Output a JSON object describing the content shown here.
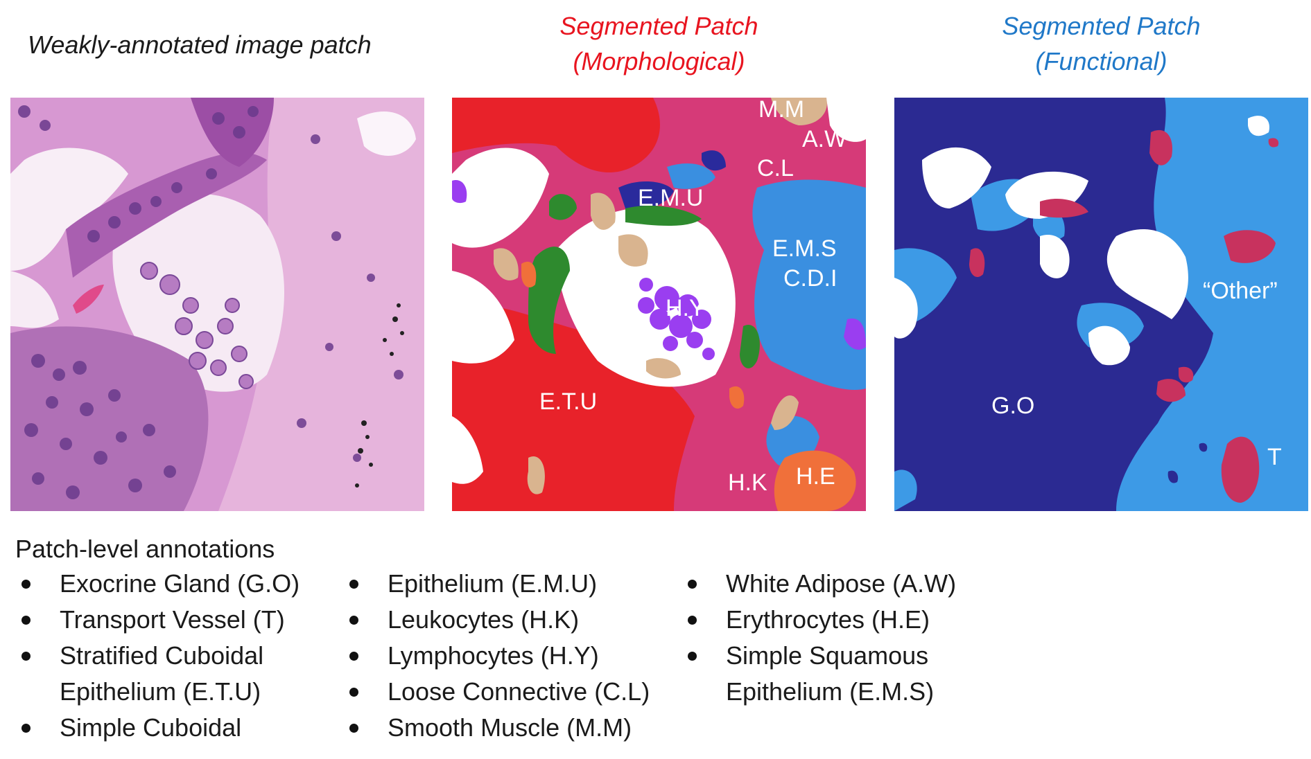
{
  "titles": {
    "original": "Weakly-annotated image patch",
    "morphological_line1": "Segmented Patch",
    "morphological_line2": "(Morphological)",
    "functional_line1": "Segmented Patch",
    "functional_line2": "(Functional)"
  },
  "colors": {
    "morphological_title": "#e8141f",
    "functional_title": "#1f78c8",
    "etu_red": "#e8222a",
    "loose_connective_pink": "#d63a78",
    "simple_squamous_blue": "#3a8fe0",
    "epithelium_navy": "#2a2a9c",
    "lymphocytes_purple": "#9a3ef0",
    "smooth_muscle_tan": "#d9b48f",
    "leukocytes_green": "#2e8a2e",
    "erythrocytes_orange": "#f0703a",
    "exocrine_navy": "#2b2a92",
    "other_lightblue": "#3d9ae6",
    "transport_crimson": "#c8325e"
  },
  "morphological_labels": {
    "mm": "M.M",
    "aw": "A.W",
    "cl": "C.L",
    "emu": "E.M.U",
    "ems": "E.M.S",
    "cdi": "C.D.I",
    "hy": "H.Y",
    "etu": "E.T.U",
    "hk": "H.K",
    "he": "H.E"
  },
  "functional_labels": {
    "go": "G.O",
    "other": "“Other”",
    "t": "T"
  },
  "legend": {
    "heading": "Patch-level annotations",
    "col1": [
      {
        "lines": [
          "Exocrine Gland (G.O)"
        ]
      },
      {
        "lines": [
          "Transport Vessel (T)"
        ]
      },
      {
        "lines": [
          "Stratified Cuboidal",
          "Epithelium (E.T.U)"
        ]
      },
      {
        "lines": [
          "Simple Cuboidal"
        ]
      }
    ],
    "col2": [
      {
        "lines": [
          "Epithelium (E.M.U)"
        ]
      },
      {
        "lines": [
          "Leukocytes (H.K)"
        ]
      },
      {
        "lines": [
          "Lymphocytes (H.Y)"
        ]
      },
      {
        "lines": [
          "Loose Connective (C.L)"
        ]
      },
      {
        "lines": [
          "Smooth Muscle (M.M)"
        ]
      }
    ],
    "col3": [
      {
        "lines": [
          "White Adipose (A.W)"
        ]
      },
      {
        "lines": [
          "Erythrocytes (H.E)"
        ]
      },
      {
        "lines": [
          "Simple Squamous",
          "Epithelium (E.M.S)"
        ]
      }
    ]
  }
}
